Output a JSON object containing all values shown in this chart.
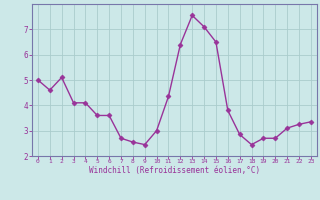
{
  "x": [
    0,
    1,
    2,
    3,
    4,
    5,
    6,
    7,
    8,
    9,
    10,
    11,
    12,
    13,
    14,
    15,
    16,
    17,
    18,
    19,
    20,
    21,
    22,
    23
  ],
  "y": [
    5.0,
    4.6,
    5.1,
    4.1,
    4.1,
    3.6,
    3.6,
    2.7,
    2.55,
    2.45,
    3.0,
    4.35,
    6.4,
    7.55,
    7.1,
    6.5,
    3.8,
    2.85,
    2.45,
    2.7,
    2.7,
    3.1,
    3.25,
    3.35
  ],
  "line_color": "#993399",
  "marker": "D",
  "marker_size": 2.5,
  "bg_color": "#cce8e8",
  "grid_color": "#aacccc",
  "xlabel": "Windchill (Refroidissement éolien,°C)",
  "xlabel_color": "#993399",
  "tick_color": "#993399",
  "spine_color": "#7777aa",
  "xlim": [
    -0.5,
    23.5
  ],
  "ylim": [
    2.0,
    8.0
  ],
  "yticks": [
    2,
    3,
    4,
    5,
    6,
    7
  ],
  "xticks": [
    0,
    1,
    2,
    3,
    4,
    5,
    6,
    7,
    8,
    9,
    10,
    11,
    12,
    13,
    14,
    15,
    16,
    17,
    18,
    19,
    20,
    21,
    22,
    23
  ],
  "xtick_labels": [
    "0",
    "1",
    "2",
    "3",
    "4",
    "5",
    "6",
    "7",
    "8",
    "9",
    "10",
    "11",
    "12",
    "13",
    "14",
    "15",
    "16",
    "17",
    "18",
    "19",
    "20",
    "21",
    "22",
    "23"
  ],
  "linewidth": 1.0
}
